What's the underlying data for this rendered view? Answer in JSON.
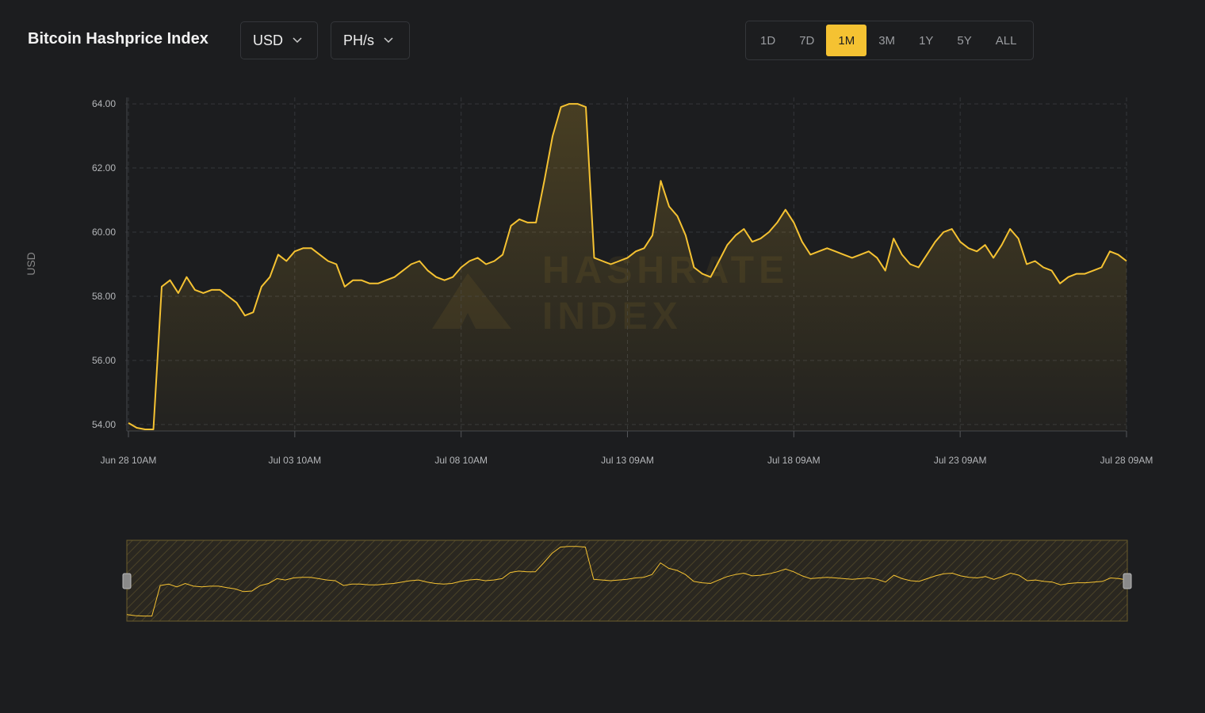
{
  "header": {
    "title": "Bitcoin Hashprice Index",
    "currency": "USD",
    "unit": "PH/s",
    "ranges": [
      "1D",
      "7D",
      "1M",
      "3M",
      "1Y",
      "5Y",
      "ALL"
    ],
    "selected_range": "1M"
  },
  "chart_data": {
    "type": "line",
    "y_label": "USD",
    "watermark": [
      "HASHRATE",
      "INDEX"
    ],
    "categories": [
      "Jun 28 10AM",
      null,
      null,
      null,
      null,
      null,
      null,
      null,
      null,
      null,
      null,
      null,
      null,
      null,
      null,
      null,
      null,
      null,
      null,
      null,
      "Jul 03 10AM",
      null,
      null,
      null,
      null,
      null,
      null,
      null,
      null,
      null,
      null,
      null,
      null,
      null,
      null,
      null,
      null,
      null,
      null,
      null,
      "Jul 08 10AM",
      null,
      null,
      null,
      null,
      null,
      null,
      null,
      null,
      null,
      null,
      null,
      null,
      null,
      null,
      null,
      null,
      null,
      null,
      null,
      "Jul 13 09AM",
      null,
      null,
      null,
      null,
      null,
      null,
      null,
      null,
      null,
      null,
      null,
      null,
      null,
      null,
      null,
      null,
      null,
      null,
      null,
      "Jul 18 09AM",
      null,
      null,
      null,
      null,
      null,
      null,
      null,
      null,
      null,
      null,
      null,
      null,
      null,
      null,
      null,
      null,
      null,
      null,
      null,
      "Jul 23 09AM",
      null,
      null,
      null,
      null,
      null,
      null,
      null,
      null,
      null,
      null,
      null,
      null,
      null,
      null,
      null,
      null,
      null,
      null,
      null,
      "Jul 28 09AM"
    ],
    "series": [
      {
        "name": "Hashprice",
        "color": "#f5c232",
        "values": [
          54.05,
          53.9,
          53.85,
          53.85,
          58.3,
          58.5,
          58.1,
          58.6,
          58.2,
          58.1,
          58.2,
          58.2,
          58.0,
          57.8,
          57.4,
          57.5,
          58.3,
          58.6,
          59.3,
          59.1,
          59.4,
          59.5,
          59.5,
          59.3,
          59.1,
          59.0,
          58.3,
          58.5,
          58.5,
          58.4,
          58.4,
          58.5,
          58.6,
          58.8,
          59.0,
          59.1,
          58.8,
          58.6,
          58.5,
          58.6,
          58.9,
          59.1,
          59.2,
          59.0,
          59.1,
          59.3,
          60.2,
          60.4,
          60.3,
          60.3,
          61.6,
          63.0,
          63.9,
          64.0,
          64.0,
          63.9,
          59.2,
          59.1,
          59.0,
          59.1,
          59.2,
          59.4,
          59.5,
          59.9,
          61.6,
          60.8,
          60.5,
          59.9,
          58.9,
          58.7,
          58.6,
          59.1,
          59.6,
          59.9,
          60.1,
          59.7,
          59.8,
          60.0,
          60.3,
          60.7,
          60.3,
          59.7,
          59.3,
          59.4,
          59.5,
          59.4,
          59.3,
          59.2,
          59.3,
          59.4,
          59.2,
          58.8,
          59.8,
          59.3,
          59.0,
          58.9,
          59.3,
          59.7,
          60.0,
          60.1,
          59.7,
          59.5,
          59.4,
          59.6,
          59.2,
          59.6,
          60.1,
          59.8,
          59.0,
          59.1,
          58.9,
          58.8,
          58.4,
          58.6,
          58.7,
          58.7,
          58.8,
          58.9,
          59.4,
          59.3,
          59.1
        ]
      }
    ],
    "ylim": [
      53.8,
      64.2
    ],
    "yticks": [
      {
        "value": 54,
        "label": "54.00"
      },
      {
        "value": 56,
        "label": "56.00"
      },
      {
        "value": 58,
        "label": "58.00"
      },
      {
        "value": 60,
        "label": "60.00"
      },
      {
        "value": 62,
        "label": "62.00"
      },
      {
        "value": 64,
        "label": "64.00"
      }
    ],
    "grid": true
  }
}
